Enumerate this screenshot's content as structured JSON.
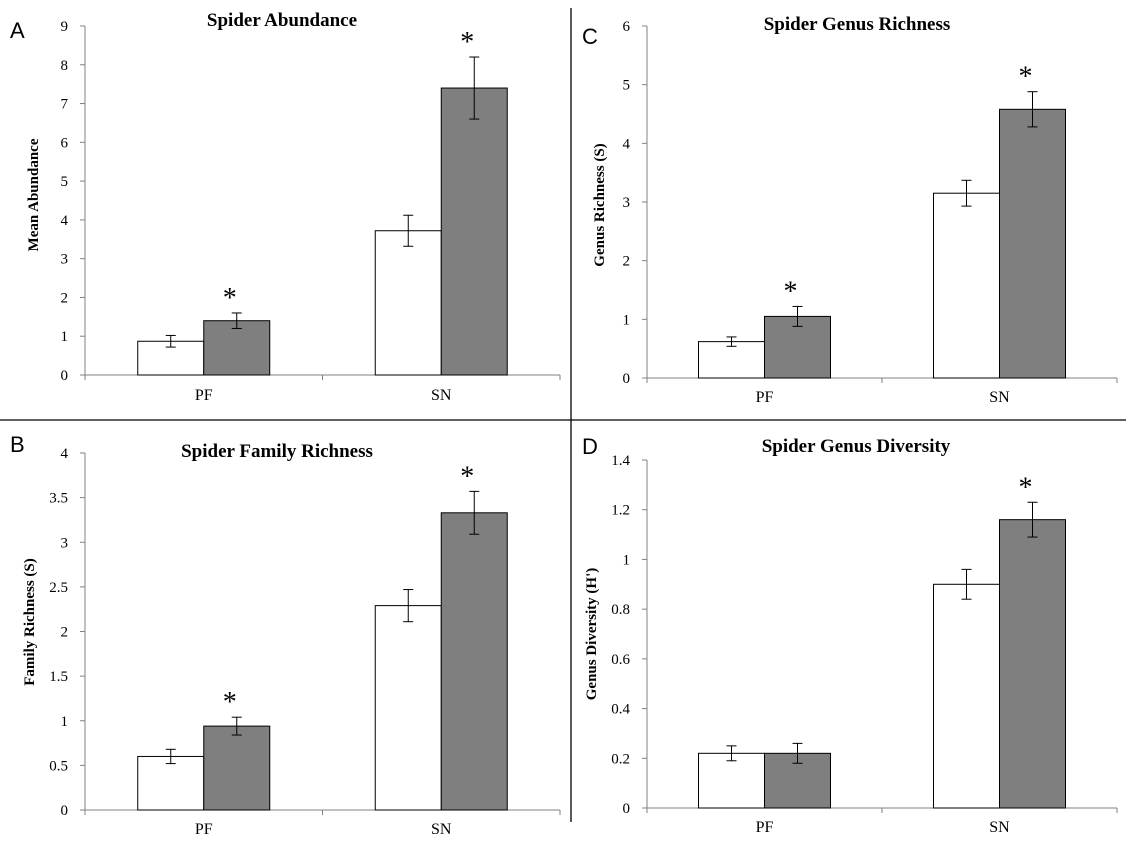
{
  "panel_letters": [
    "A",
    "C",
    "B",
    "D"
  ],
  "series_colors": [
    "#ffffff",
    "#7f7f7f"
  ],
  "significance_mark": "*",
  "chart_data": [
    {
      "type": "bar",
      "panel": "A",
      "title": "Spider Abundance",
      "xlabel": "",
      "ylabel": "Mean Abundance",
      "categories": [
        "PF",
        "SN"
      ],
      "ylim": [
        0,
        9
      ],
      "yticks": [
        0,
        1,
        2,
        3,
        4,
        5,
        6,
        7,
        8,
        9
      ],
      "ytick_labels": [
        "0",
        "1",
        "2",
        "3",
        "4",
        "5",
        "6",
        "7",
        "8",
        "9"
      ],
      "series": [
        {
          "values": [
            0.87,
            3.72
          ],
          "errors": [
            0.15,
            0.4
          ]
        },
        {
          "values": [
            1.4,
            7.4
          ],
          "errors": [
            0.2,
            0.8
          ]
        }
      ],
      "significant": [
        true,
        true
      ],
      "grid": false,
      "legend": false
    },
    {
      "type": "bar",
      "panel": "C",
      "title": "Spider Genus Richness",
      "xlabel": "",
      "ylabel": "Genus Richness (S)",
      "categories": [
        "PF",
        "SN"
      ],
      "ylim": [
        0,
        6
      ],
      "yticks": [
        0,
        1,
        2,
        3,
        4,
        5,
        6
      ],
      "ytick_labels": [
        "0",
        "1",
        "2",
        "3",
        "4",
        "5",
        "6"
      ],
      "series": [
        {
          "values": [
            0.62,
            3.15
          ],
          "errors": [
            0.08,
            0.22
          ]
        },
        {
          "values": [
            1.05,
            4.58
          ],
          "errors": [
            0.17,
            0.3
          ]
        }
      ],
      "significant": [
        true,
        true
      ],
      "grid": false,
      "legend": false
    },
    {
      "type": "bar",
      "panel": "B",
      "title": "Spider Family Richness",
      "xlabel": "",
      "ylabel": "Family Richness (S)",
      "categories": [
        "PF",
        "SN"
      ],
      "ylim": [
        0,
        4
      ],
      "yticks": [
        0,
        0.5,
        1,
        1.5,
        2,
        2.5,
        3,
        3.5,
        4
      ],
      "ytick_labels": [
        "0",
        "0.5",
        "1",
        "1.5",
        "2",
        "2.5",
        "3",
        "3.5",
        "4"
      ],
      "series": [
        {
          "values": [
            0.6,
            2.29
          ],
          "errors": [
            0.08,
            0.18
          ]
        },
        {
          "values": [
            0.94,
            3.33
          ],
          "errors": [
            0.1,
            0.24
          ]
        }
      ],
      "significant": [
        true,
        true
      ],
      "grid": false,
      "legend": false
    },
    {
      "type": "bar",
      "panel": "D",
      "title": "Spider Genus Diversity",
      "xlabel": "",
      "ylabel": "Genus Diversity (H')",
      "categories": [
        "PF",
        "SN"
      ],
      "ylim": [
        0,
        1.4
      ],
      "yticks": [
        0,
        0.2,
        0.4,
        0.6,
        0.8,
        1,
        1.2,
        1.4
      ],
      "ytick_labels": [
        "0",
        "0.2",
        "0.4",
        "0.6",
        "0.8",
        "1",
        "1.2",
        "1.4"
      ],
      "series": [
        {
          "values": [
            0.22,
            0.9
          ],
          "errors": [
            0.03,
            0.06
          ]
        },
        {
          "values": [
            0.22,
            1.16
          ],
          "errors": [
            0.04,
            0.07
          ]
        }
      ],
      "significant": [
        false,
        true
      ],
      "grid": false,
      "legend": false
    }
  ]
}
